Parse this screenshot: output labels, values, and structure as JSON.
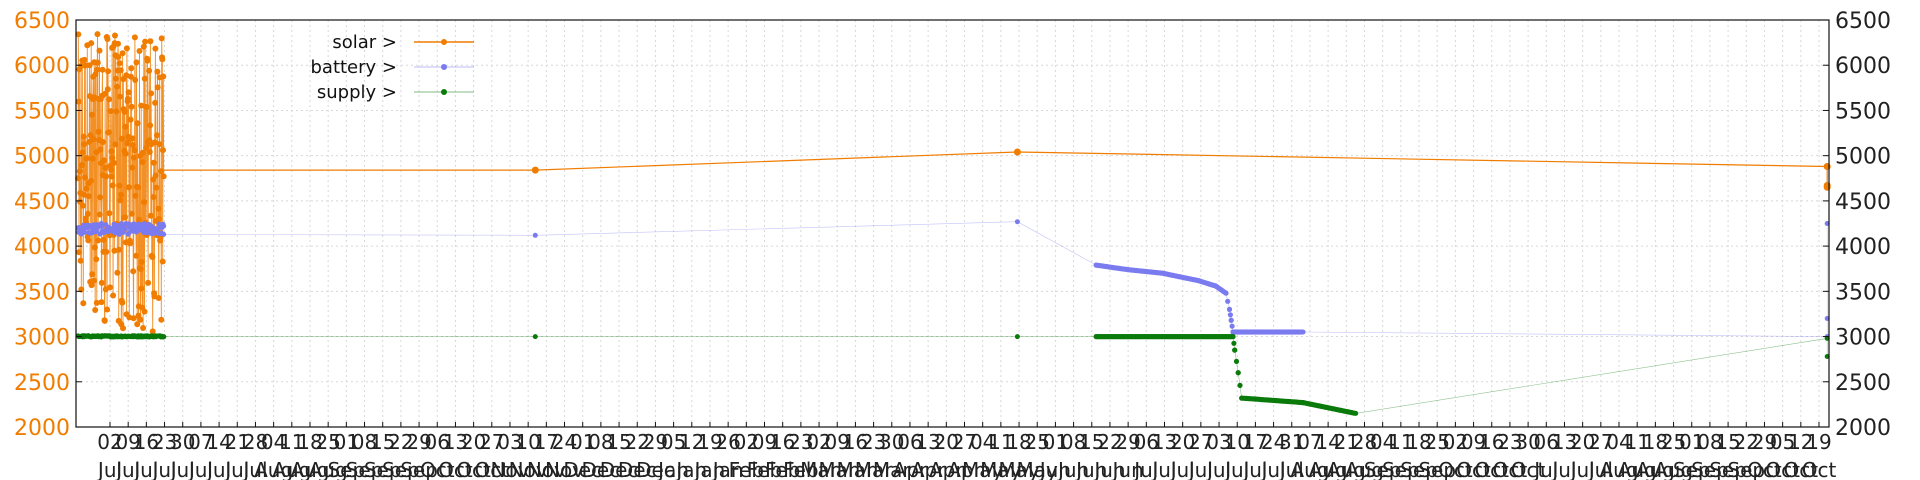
{
  "chart_data": {
    "type": "line",
    "ylim": [
      2000,
      6500
    ],
    "y_ticks_left": [
      2000,
      2500,
      3000,
      3500,
      4000,
      4500,
      5000,
      5500,
      6000,
      6500
    ],
    "y_ticks_right": [
      2000,
      2500,
      3000,
      3500,
      4000,
      4500,
      5000,
      5500,
      6000,
      6500
    ],
    "xlim": [
      "Jul 2022",
      "Oct 2023"
    ],
    "x_tick_day_labels": [
      "02",
      "09",
      "16",
      "23",
      "30",
      "07",
      "14",
      "21",
      "28",
      "04",
      "11",
      "18",
      "25",
      "01",
      "08",
      "15",
      "22",
      "29",
      "06",
      "13",
      "20",
      "27",
      "03",
      "10",
      "17",
      "24",
      "01",
      "08",
      "15",
      "22",
      "29",
      "05",
      "12",
      "19",
      "26",
      "02",
      "09",
      "16",
      "23",
      "02",
      "09",
      "16",
      "23",
      "30",
      "06",
      "13",
      "20",
      "27",
      "04",
      "11",
      "18",
      "25",
      "01",
      "08",
      "15",
      "22",
      "29",
      "06",
      "13",
      "20",
      "27",
      "03",
      "10",
      "17",
      "24",
      "31",
      "07",
      "14",
      "21",
      "28",
      "04",
      "11",
      "18",
      "25",
      "02",
      "09",
      "16",
      "23",
      "30",
      "06",
      "13",
      "20",
      "27",
      "04",
      "11",
      "18",
      "25",
      "01",
      "08",
      "15",
      "22",
      "29",
      "05",
      "12",
      "19"
    ],
    "x_tick_month_labels": [
      "Jul",
      "Jul",
      "Jul",
      "Jul",
      "Jul",
      "Jul",
      "Jul",
      "Jul",
      "Jul",
      "Aug",
      "Aug",
      "Aug",
      "Aug",
      "Sep",
      "Sep",
      "Sep",
      "Sep",
      "Sep",
      "Oct",
      "Oct",
      "Oct",
      "Oct",
      "Nov",
      "Nov",
      "Nov",
      "Nov",
      "Dec",
      "Dec",
      "Dec",
      "Dec",
      "Dec",
      "Jan",
      "Jan",
      "Jan",
      "Jan",
      "Feb",
      "Feb",
      "Feb",
      "Feb",
      "Mar",
      "Mar",
      "Mar",
      "Mar",
      "Mar",
      "Apr",
      "Apr",
      "Apr",
      "Apr",
      "May",
      "May",
      "May",
      "May",
      "Jun",
      "Jun",
      "Jun",
      "Jun",
      "Jun",
      "Jul",
      "Jul",
      "Jul",
      "Jul",
      "Jul",
      "Jul",
      "Jul",
      "Jul",
      "Jul",
      "Aug",
      "Aug",
      "Aug",
      "Aug",
      "Sep",
      "Sep",
      "Sep",
      "Sep",
      "Oct",
      "Oct",
      "Oct",
      "Oct",
      "Oct",
      "Jul",
      "Jul",
      "Jul",
      "Jul",
      "Aug",
      "Aug",
      "Aug",
      "Aug",
      "Sep",
      "Sep",
      "Sep",
      "Sep",
      "Oct",
      "Oct",
      "Oct",
      "Oct"
    ],
    "grid": true,
    "legend_position": "top-left",
    "series": [
      {
        "name": "solar >",
        "color": "#f07c00",
        "dense_block": {
          "x_range": [
            0.0,
            0.05
          ],
          "y_range": [
            3050,
            6350
          ]
        },
        "points": [
          [
            0.262,
            4840
          ],
          [
            0.537,
            5040
          ],
          [
            0.999,
            4880
          ],
          [
            0.999,
            4670
          ],
          [
            0.999,
            4650
          ]
        ]
      },
      {
        "name": "battery >",
        "color": "#7b7bf0",
        "dense_block": {
          "x_range": [
            0.0,
            0.05
          ],
          "y_range": [
            4130,
            4250
          ]
        },
        "points": [
          [
            0.05,
            4130
          ],
          [
            0.262,
            4120
          ],
          [
            0.537,
            4270
          ],
          [
            0.582,
            3790
          ],
          [
            0.6,
            3740
          ],
          [
            0.62,
            3700
          ],
          [
            0.64,
            3620
          ],
          [
            0.65,
            3560
          ],
          [
            0.656,
            3480
          ],
          [
            0.658,
            3300
          ],
          [
            0.659,
            3180
          ],
          [
            0.66,
            3050
          ],
          [
            0.7,
            3050
          ],
          [
            0.999,
            3000
          ],
          [
            0.999,
            3200
          ],
          [
            0.999,
            4250
          ]
        ]
      },
      {
        "name": "supply >",
        "color": "#0a7a0a",
        "dense_block": {
          "x_range": [
            0.0,
            0.05
          ],
          "y_range": [
            2995,
            3010
          ]
        },
        "points": [
          [
            0.05,
            3000
          ],
          [
            0.262,
            3000
          ],
          [
            0.537,
            3000
          ],
          [
            0.582,
            3000
          ],
          [
            0.66,
            3000
          ],
          [
            0.661,
            2850
          ],
          [
            0.663,
            2600
          ],
          [
            0.665,
            2320
          ],
          [
            0.7,
            2270
          ],
          [
            0.71,
            2230
          ],
          [
            0.73,
            2150
          ],
          [
            0.999,
            2980
          ],
          [
            0.999,
            2780
          ]
        ]
      }
    ]
  }
}
